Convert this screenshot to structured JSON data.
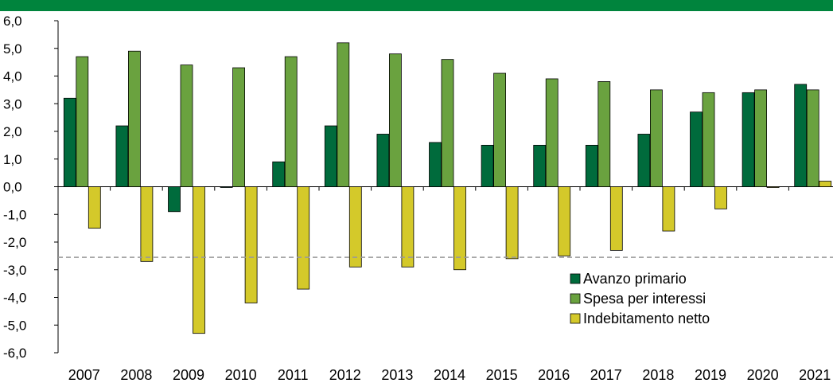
{
  "title": "",
  "colors": {
    "header": "#00843d",
    "avanzo": "#006b3c",
    "spesa": "#6aa23f",
    "indebitamento": "#d4c92a",
    "bar_stroke": "#000000",
    "reference_line": "#999999"
  },
  "chart_data": {
    "type": "bar",
    "title": "",
    "xlabel": "",
    "ylabel": "",
    "ylim": [
      -6,
      6
    ],
    "yticks": [
      "6,0",
      "5,0",
      "4,0",
      "3,0",
      "2,0",
      "1,0",
      "0,0",
      "-1,0",
      "-2,0",
      "-3,0",
      "-4,0",
      "-5,0",
      "-6,0"
    ],
    "categories": [
      "2007",
      "2008",
      "2009",
      "2010",
      "2011",
      "2012",
      "2013",
      "2014",
      "2015",
      "2016",
      "2017",
      "2018",
      "2019",
      "2020",
      "2021"
    ],
    "series": [
      {
        "name": "Avanzo primario",
        "values": [
          3.2,
          2.2,
          -0.9,
          0.0,
          0.9,
          2.2,
          1.9,
          1.6,
          1.5,
          1.5,
          1.5,
          1.9,
          2.7,
          3.4,
          3.7
        ]
      },
      {
        "name": "Spesa per interessi",
        "values": [
          4.7,
          4.9,
          4.4,
          4.3,
          4.7,
          5.2,
          4.8,
          4.6,
          4.1,
          3.9,
          3.8,
          3.5,
          3.4,
          3.5,
          3.5
        ]
      },
      {
        "name": "Indebitamento netto",
        "values": [
          -1.5,
          -2.7,
          -5.3,
          -4.2,
          -3.7,
          -2.9,
          -2.9,
          -3.0,
          -2.6,
          -2.5,
          -2.3,
          -1.6,
          -0.8,
          0.0,
          0.2
        ]
      }
    ],
    "reference_line": {
      "value": -2.55,
      "style": "dashed"
    },
    "legend": {
      "position": "lower-right",
      "entries": [
        "Avanzo primario",
        "Spesa per interessi",
        "Indebitamento netto"
      ]
    },
    "grid": false
  }
}
